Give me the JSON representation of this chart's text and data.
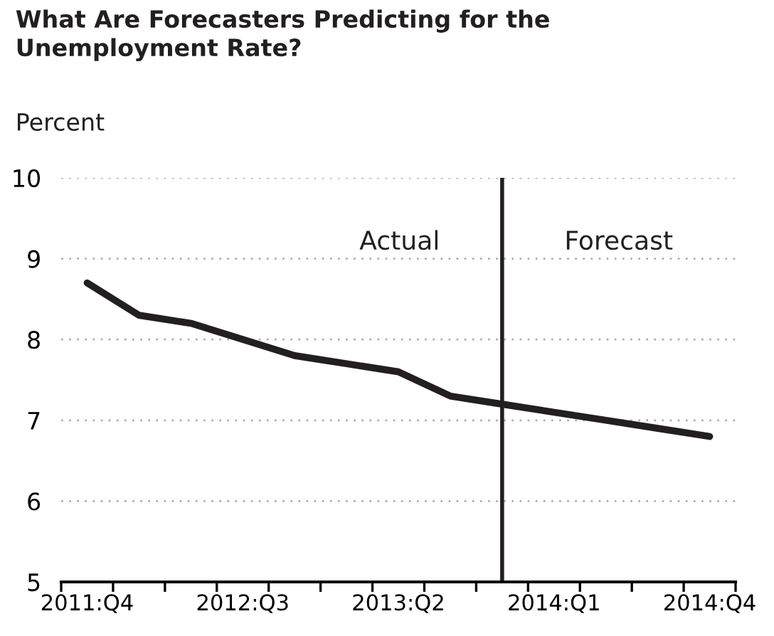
{
  "chart_data": {
    "type": "line",
    "title": "What Are Forecasters Predicting for the\nUnemployment Rate?",
    "ylabel": "Percent",
    "categories": [
      "2011:Q4",
      null,
      null,
      "2012:Q3",
      null,
      null,
      "2013:Q2",
      null,
      null,
      "2014:Q1",
      null,
      null,
      "2014:Q4"
    ],
    "series": [
      {
        "color": "#231f20",
        "values": [
          8.7,
          8.3,
          8.2,
          8.0,
          7.8,
          7.7,
          7.6,
          7.3,
          7.2,
          7.1,
          7.0,
          6.9,
          6.8
        ]
      }
    ],
    "ylim": [
      5,
      10
    ],
    "yticks": [
      5,
      6,
      7,
      8,
      9,
      10
    ],
    "grid": "y",
    "legend": false,
    "marker": "none",
    "line_style": "solid",
    "annotations": [
      "Actual",
      "Forecast"
    ]
  }
}
